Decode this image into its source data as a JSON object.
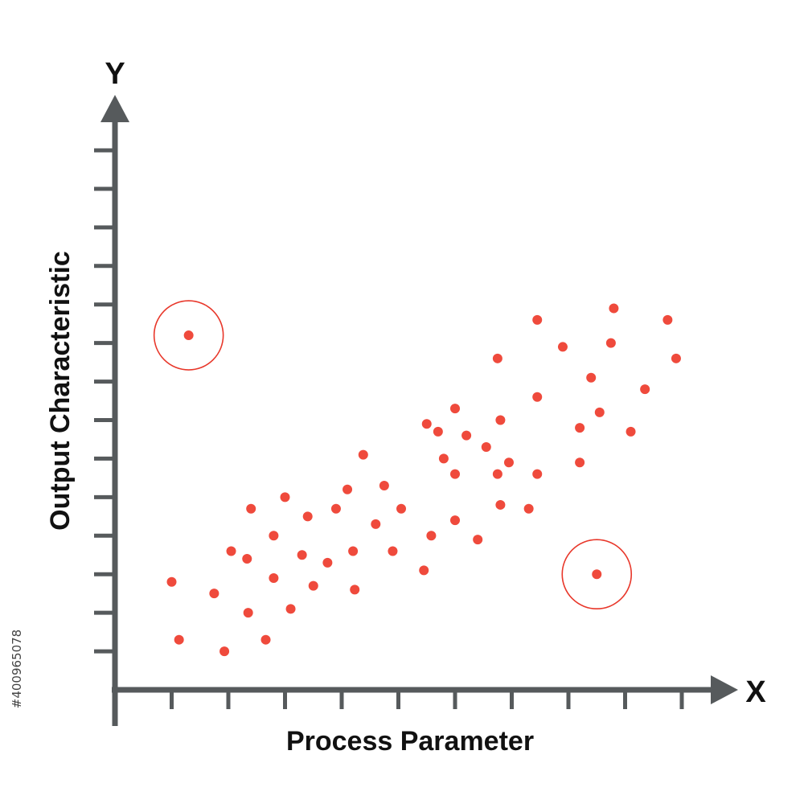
{
  "chart_data": {
    "type": "scatter",
    "title": "",
    "xlabel": "Process Parameter",
    "ylabel": "Output Characteristic",
    "x_axis_letter": "X",
    "y_axis_letter": "Y",
    "xlim": [
      0,
      10
    ],
    "ylim": [
      0,
      14
    ],
    "x_tick_count": 10,
    "y_tick_count": 14,
    "tick_labels_shown": false,
    "grid": false,
    "legend": "none",
    "colors": {
      "axis": "#565a5c",
      "points": "#ef4a3c",
      "outlier_ring": "#e8372a",
      "text": "#111111"
    },
    "series": [
      {
        "points": [
          {
            "x": 1.0,
            "y": 2.8
          },
          {
            "x": 1.13,
            "y": 1.3
          },
          {
            "x": 1.75,
            "y": 2.5
          },
          {
            "x": 1.93,
            "y": 1.0
          },
          {
            "x": 2.05,
            "y": 3.6
          },
          {
            "x": 2.35,
            "y": 2.0
          },
          {
            "x": 2.33,
            "y": 3.4
          },
          {
            "x": 2.4,
            "y": 4.7
          },
          {
            "x": 2.66,
            "y": 1.3
          },
          {
            "x": 2.8,
            "y": 4.0
          },
          {
            "x": 2.8,
            "y": 2.9
          },
          {
            "x": 3.0,
            "y": 5.0
          },
          {
            "x": 3.1,
            "y": 2.1
          },
          {
            "x": 3.3,
            "y": 3.5
          },
          {
            "x": 3.4,
            "y": 4.5
          },
          {
            "x": 3.5,
            "y": 2.7
          },
          {
            "x": 3.75,
            "y": 3.3
          },
          {
            "x": 3.9,
            "y": 4.7
          },
          {
            "x": 4.1,
            "y": 5.2
          },
          {
            "x": 4.2,
            "y": 3.6
          },
          {
            "x": 4.23,
            "y": 2.6
          },
          {
            "x": 4.38,
            "y": 6.1
          },
          {
            "x": 4.6,
            "y": 4.3
          },
          {
            "x": 4.75,
            "y": 5.3
          },
          {
            "x": 4.9,
            "y": 3.6
          },
          {
            "x": 5.05,
            "y": 4.7
          },
          {
            "x": 5.45,
            "y": 3.1
          },
          {
            "x": 5.5,
            "y": 6.9
          },
          {
            "x": 5.58,
            "y": 4.0
          },
          {
            "x": 5.7,
            "y": 6.7
          },
          {
            "x": 5.8,
            "y": 6.0
          },
          {
            "x": 6.0,
            "y": 7.3
          },
          {
            "x": 6.0,
            "y": 4.4
          },
          {
            "x": 6.0,
            "y": 5.6
          },
          {
            "x": 6.2,
            "y": 6.6
          },
          {
            "x": 6.4,
            "y": 3.9
          },
          {
            "x": 6.55,
            "y": 6.3
          },
          {
            "x": 6.75,
            "y": 5.6
          },
          {
            "x": 6.75,
            "y": 8.6
          },
          {
            "x": 6.8,
            "y": 4.8
          },
          {
            "x": 6.8,
            "y": 7.0
          },
          {
            "x": 6.95,
            "y": 5.9
          },
          {
            "x": 7.3,
            "y": 4.7
          },
          {
            "x": 7.45,
            "y": 5.6
          },
          {
            "x": 7.45,
            "y": 7.6
          },
          {
            "x": 7.45,
            "y": 9.6
          },
          {
            "x": 7.9,
            "y": 8.9
          },
          {
            "x": 8.2,
            "y": 6.8
          },
          {
            "x": 8.4,
            "y": 8.1
          },
          {
            "x": 8.2,
            "y": 5.9
          },
          {
            "x": 8.55,
            "y": 7.2
          },
          {
            "x": 8.75,
            "y": 9.0
          },
          {
            "x": 8.8,
            "y": 9.9
          },
          {
            "x": 9.1,
            "y": 6.7
          },
          {
            "x": 9.35,
            "y": 7.8
          },
          {
            "x": 9.75,
            "y": 9.6
          },
          {
            "x": 9.9,
            "y": 8.6
          }
        ]
      }
    ],
    "highlighted_outliers": [
      {
        "x": 1.3,
        "y": 9.2
      },
      {
        "x": 8.5,
        "y": 3.0
      }
    ]
  },
  "watermark": {
    "stock_id": "#400965078"
  }
}
